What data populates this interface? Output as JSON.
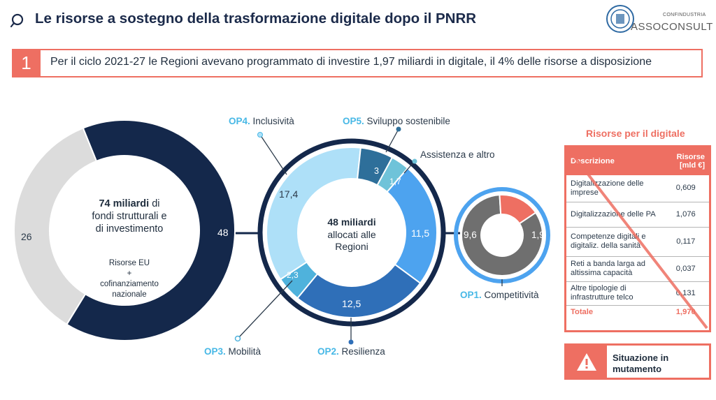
{
  "header": {
    "title": "Le risorse a sostegno della trasformazione digitale dopo il PNRR",
    "logo_small": "CONFINDUSTRIA",
    "logo_text": "ASSOCONSULT"
  },
  "banner": {
    "number": "1",
    "text": "Per il ciclo 2021-27 le Regioni avevano programmato di investire 1,97 miliardi in digitale, il 4% delle risorse a disposizione"
  },
  "colors": {
    "accent": "#ee6f62",
    "navy": "#14284b",
    "light_gray": "#dcdcdc",
    "light_blue": "#47b8e6"
  },
  "chart_data": [
    {
      "type": "pie",
      "title": "74 miliardi di fondi strutturali e di investimento",
      "title_bold": "74 miliardi",
      "title_rest_1": "di",
      "title_rest_2": "fondi strutturali e",
      "title_rest_3": "di investimento",
      "note_1": "Risorse EU",
      "note_2": "+",
      "note_3": "cofinanziamento",
      "note_4": "nazionale",
      "slices": [
        {
          "label": "48",
          "value": 48,
          "color": "#14284b"
        },
        {
          "label": "26",
          "value": 26,
          "color": "#dcdcdc"
        }
      ]
    },
    {
      "type": "pie",
      "title": "48 miliardi allocati alle Regioni",
      "title_bold": "48 miliardi",
      "title_rest_1": "allocati alle",
      "title_rest_2": "Regioni",
      "slices": [
        {
          "label": "11,5",
          "value": 11.5,
          "color": "#4da3ef",
          "name_bold": "OP1.",
          "name": "Competitività"
        },
        {
          "label": "12,5",
          "value": 12.5,
          "color": "#2f6fb8",
          "name_bold": "OP2.",
          "name": "Resilienza"
        },
        {
          "label": "2,3",
          "value": 2.3,
          "color": "#4fb2dc",
          "name_bold": "OP3.",
          "name": "Mobilità"
        },
        {
          "label": "17,4",
          "value": 17.4,
          "color": "#aee0f8",
          "name_bold": "OP4.",
          "name": "Inclusività"
        },
        {
          "label": "3",
          "value": 3,
          "color": "#2e6f9a",
          "name_bold": "OP5.",
          "name": "Sviluppo sostenibile"
        },
        {
          "label": "1,7",
          "value": 1.7,
          "color": "#6fc3d9",
          "name_bold": "",
          "name": "Assistenza e altro"
        }
      ]
    },
    {
      "type": "pie",
      "title": "OP1. Competitività",
      "slices": [
        {
          "label": "9,6",
          "value": 9.6,
          "color": "#6f6f6f"
        },
        {
          "label": "1,9",
          "value": 1.9,
          "color": "#ee6f62"
        }
      ]
    },
    {
      "type": "table",
      "title": "Risorse per il digitale",
      "columns": [
        "Descrizione",
        "Risorse [mld €]"
      ],
      "rows": [
        [
          "Digitalizzazione delle imprese",
          "0,609"
        ],
        [
          "Digitalizzazione delle PA",
          "1,076"
        ],
        [
          "Competenze digitali e digitaliz. della sanità",
          "0,117"
        ],
        [
          "Reti a banda larga ad altissima capacità",
          "0,037"
        ],
        [
          "Altre tipologie di infrastrutture telco",
          "0,131"
        ]
      ],
      "total": [
        "Totale",
        "1,970"
      ]
    }
  ],
  "warning": {
    "text_1": "Situazione in",
    "text_2": "mutamento"
  }
}
